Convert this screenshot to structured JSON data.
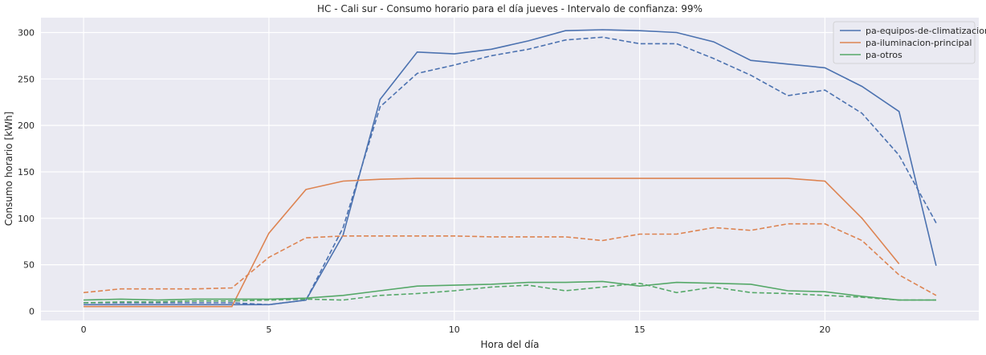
{
  "chart_data": {
    "type": "line",
    "title": "HC - Cali sur - Consumo horario para el día jueves - Intervalo de confianza: 99%",
    "xlabel": "Hora del día",
    "ylabel": "Consumo horario [kWh]",
    "xlim": [
      -1.15,
      24.15
    ],
    "ylim": [
      -10,
      316
    ],
    "xticks": [
      0,
      5,
      10,
      15,
      20
    ],
    "yticks": [
      0,
      50,
      100,
      150,
      200,
      250,
      300
    ],
    "grid": true,
    "legend_position": "top-right",
    "x": [
      0,
      1,
      2,
      3,
      4,
      5,
      6,
      7,
      8,
      9,
      10,
      11,
      12,
      13,
      14,
      15,
      16,
      17,
      18,
      19,
      20,
      21,
      22,
      23
    ],
    "series": [
      {
        "name": "pa-equipos-de-climatizacion",
        "color": "#4c72b0",
        "values": [
          7,
          7,
          7,
          7,
          7,
          7,
          12,
          82,
          228,
          279,
          277,
          282,
          291,
          302,
          303,
          302,
          300,
          290,
          270,
          266,
          262,
          242,
          215,
          49
        ],
        "lower": [
          9,
          9,
          9,
          9,
          9,
          7,
          12,
          90,
          220,
          256,
          265,
          275,
          282,
          292,
          295,
          288,
          288,
          272,
          254,
          232,
          238,
          213,
          168,
          95
        ]
      },
      {
        "name": "pa-iluminacion-principal",
        "color": "#dd8452",
        "values": [
          5,
          5,
          5,
          5,
          5,
          84,
          131,
          140,
          142,
          143,
          143,
          143,
          143,
          143,
          143,
          143,
          143,
          143,
          143,
          143,
          140,
          100,
          51,
          null
        ],
        "lower": [
          20,
          24,
          24,
          24,
          25,
          58,
          79,
          81,
          81,
          81,
          81,
          80,
          80,
          80,
          76,
          83,
          83,
          90,
          87,
          94,
          94,
          76,
          39,
          17
        ]
      },
      {
        "name": "pa-otros",
        "color": "#55a868",
        "values": [
          12,
          13,
          12,
          13,
          13,
          13,
          14,
          17,
          22,
          27,
          28,
          29,
          31,
          31,
          32,
          27,
          31,
          30,
          29,
          22,
          21,
          16,
          12,
          12
        ],
        "lower": [
          9,
          10,
          10,
          11,
          11,
          12,
          13,
          12,
          17,
          19,
          22,
          26,
          28,
          22,
          26,
          30,
          20,
          26,
          20,
          19,
          17,
          15,
          12,
          12
        ]
      }
    ]
  }
}
